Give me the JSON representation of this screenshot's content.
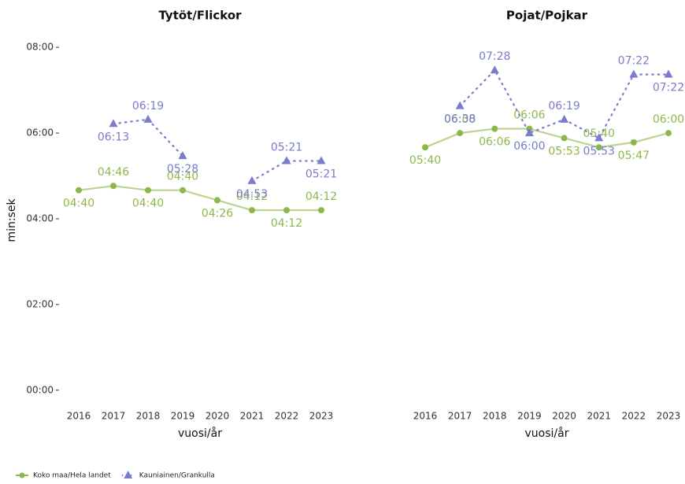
{
  "chart_data": [
    {
      "type": "line",
      "title": "Tytöt/Flickor",
      "x_label": "vuosi/år",
      "y_label": "min:sek",
      "categories": [
        "2016",
        "2017",
        "2018",
        "2019",
        "2020",
        "2021",
        "2022",
        "2023"
      ],
      "ylim": [
        -20,
        500
      ],
      "yticks": [
        {
          "value": 0,
          "label": "00:00"
        },
        {
          "value": 120,
          "label": "02:00"
        },
        {
          "value": 240,
          "label": "04:00"
        },
        {
          "value": 360,
          "label": "06:00"
        },
        {
          "value": 480,
          "label": "08:00"
        }
      ],
      "series": [
        {
          "name": "Koko maa/Hela landet",
          "color": "#8db849",
          "values": [
            280,
            286,
            280,
            280,
            266,
            252,
            252,
            252
          ],
          "value_labels": [
            "04:40",
            "04:46",
            "04:40",
            "04:40",
            "04:26",
            "04:12",
            "04:12",
            "04:12"
          ]
        },
        {
          "name": "Kauniainen/Grankulla",
          "color": "#7a7ccb",
          "values": [
            null,
            373,
            379,
            328,
            null,
            293,
            321,
            321
          ],
          "value_labels": [
            null,
            "06:13",
            "06:19",
            "05:28",
            null,
            "04:53",
            "05:21",
            "05:21"
          ]
        }
      ]
    },
    {
      "type": "line",
      "title": "Pojat/Pojkar",
      "x_label": "vuosi/år",
      "categories": [
        "2016",
        "2017",
        "2018",
        "2019",
        "2020",
        "2021",
        "2022",
        "2023"
      ],
      "ylim": [
        -20,
        500
      ],
      "series": [
        {
          "color": "#8db849",
          "values": [
            340,
            360,
            366,
            366,
            353,
            340,
            347,
            360
          ],
          "value_labels": [
            "05:40",
            "06:00",
            "06:06",
            "06:06",
            "05:53",
            "05:40",
            "05:47",
            "06:00"
          ]
        },
        {
          "color": "#7a7ccb",
          "values": [
            null,
            398,
            448,
            360,
            379,
            353,
            442,
            442
          ],
          "value_labels": [
            null,
            "06:38",
            "07:28",
            "06:00",
            "06:19",
            "05:53",
            "07:22",
            "07:22"
          ]
        }
      ]
    }
  ]
}
